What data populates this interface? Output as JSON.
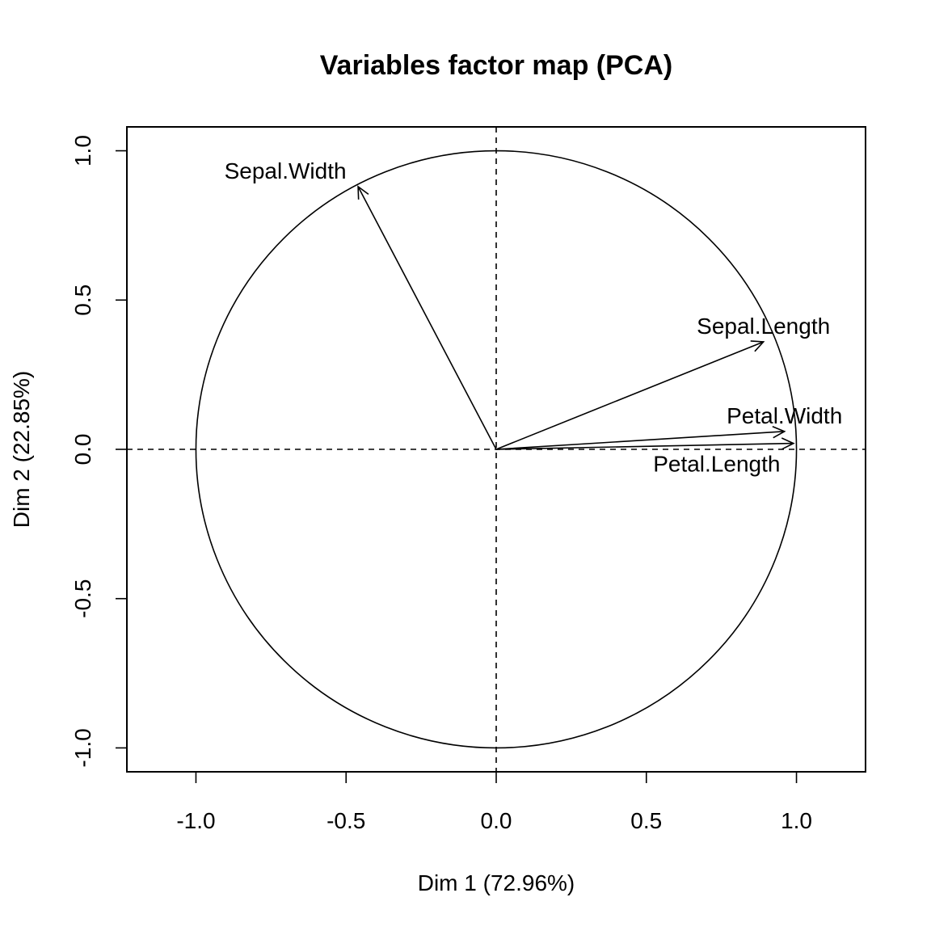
{
  "chart_data": {
    "type": "scatter",
    "title": "Variables factor map (PCA)",
    "xlabel": "Dim 1 (72.96%)",
    "ylabel": "Dim 2 (22.85%)",
    "xlim": [
      -1.23,
      1.23
    ],
    "ylim": [
      -1.08,
      1.08
    ],
    "x_ticks": [
      -1.0,
      -0.5,
      0.0,
      0.5,
      1.0
    ],
    "x_tick_labels": [
      "-1.0",
      "-0.5",
      "0.0",
      "0.5",
      "1.0"
    ],
    "y_ticks": [
      -1.0,
      -0.5,
      0.0,
      0.5,
      1.0
    ],
    "y_tick_labels": [
      "-1.0",
      "-0.5",
      "0.0",
      "0.5",
      "1.0"
    ],
    "grid": false,
    "correlation_circle": {
      "radius": 1.0
    },
    "reference_lines": {
      "x": 0,
      "y": 0,
      "style": "dashed"
    },
    "variables": [
      {
        "name": "Sepal.Length",
        "x": 0.89,
        "y": 0.36
      },
      {
        "name": "Sepal.Width",
        "x": -0.46,
        "y": 0.88
      },
      {
        "name": "Petal.Length",
        "x": 0.99,
        "y": 0.02
      },
      {
        "name": "Petal.Width",
        "x": 0.96,
        "y": 0.06
      }
    ]
  }
}
